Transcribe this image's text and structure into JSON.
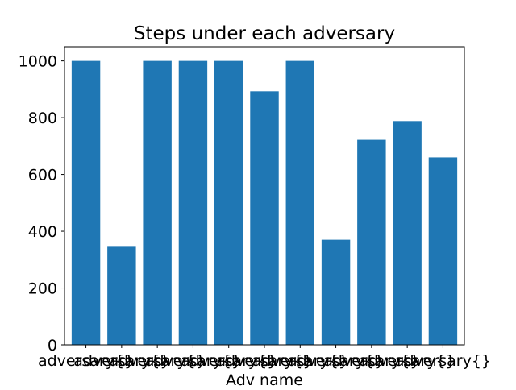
{
  "chart_data": {
    "type": "bar",
    "title": "Steps under each adversary",
    "xlabel": "Adv name",
    "ylabel": "",
    "categories": [
      "adversary{}",
      "adversary{}",
      "adversary{}",
      "adversary{}",
      "adversary{}",
      "adversary{}",
      "adversary{}",
      "adversary{}",
      "adversary{}",
      "adversary{}",
      "adversary{}"
    ],
    "values": [
      1000,
      348,
      1000,
      1000,
      1000,
      893,
      1000,
      370,
      722,
      788,
      660
    ],
    "ylim": [
      0,
      1050
    ],
    "yticks": [
      0,
      200,
      400,
      600,
      800,
      1000
    ],
    "grid": false,
    "bar_color": "#1f77b4"
  }
}
